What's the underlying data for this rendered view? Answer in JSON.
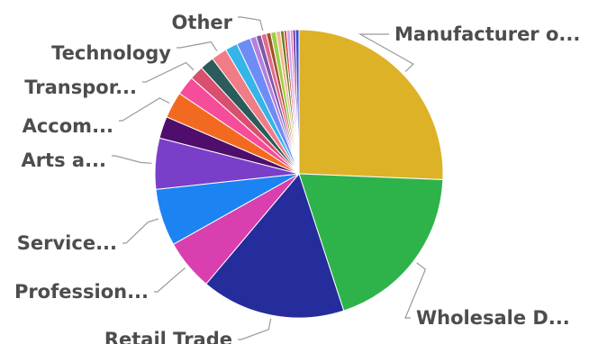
{
  "chart_data": {
    "type": "pie",
    "title": "",
    "start_angle_deg": 0,
    "direction": "clockwise",
    "slices": [
      {
        "label": "Manufacturer o...",
        "value": 26.0,
        "color": "#DDB227"
      },
      {
        "label": "Wholesale D...",
        "value": 19.6,
        "color": "#2DB34A"
      },
      {
        "label": "Retail Trade",
        "value": 16.4,
        "color": "#252C9B"
      },
      {
        "label": "Profession...",
        "value": 5.8,
        "color": "#D93FAE"
      },
      {
        "label": "Service...",
        "value": 6.5,
        "color": "#1B83F2"
      },
      {
        "label": "Arts a...",
        "value": 5.8,
        "color": "#7A3FC9"
      },
      {
        "label": "",
        "value": 2.5,
        "color": "#4F0E6B"
      },
      {
        "label": "Accom...",
        "value": 3.0,
        "color": "#F26A21"
      },
      {
        "label": "",
        "value": 2.2,
        "color": "#F54D9A"
      },
      {
        "label": "Transpor...",
        "value": 1.6,
        "color": "#D94F6E"
      },
      {
        "label": "",
        "value": 1.6,
        "color": "#2C5B5B"
      },
      {
        "label": "Technology",
        "value": 1.8,
        "color": "#F07C86"
      },
      {
        "label": "",
        "value": 1.4,
        "color": "#35B4E8"
      },
      {
        "label": "",
        "value": 1.6,
        "color": "#6E8CF5"
      },
      {
        "label": "",
        "value": 0.7,
        "color": "#B480E0"
      },
      {
        "label": "",
        "value": 0.6,
        "color": "#7E58A8"
      },
      {
        "label": "Other",
        "value": 0.6,
        "color": "#E36B8A"
      },
      {
        "label": "",
        "value": 0.5,
        "color": "#A34F2C"
      },
      {
        "label": "",
        "value": 0.6,
        "color": "#9DD04A"
      },
      {
        "label": "",
        "value": 0.5,
        "color": "#F2B98A"
      },
      {
        "label": "",
        "value": 0.4,
        "color": "#6C7F2C"
      },
      {
        "label": "",
        "value": 0.3,
        "color": "#E23B3B"
      },
      {
        "label": "",
        "value": 0.4,
        "color": "#C7A6F0"
      },
      {
        "label": "",
        "value": 0.3,
        "color": "#F27FC0"
      },
      {
        "label": "",
        "value": 0.3,
        "color": "#5C2E91"
      },
      {
        "label": "",
        "value": 0.4,
        "color": "#3A4BD8"
      }
    ]
  }
}
